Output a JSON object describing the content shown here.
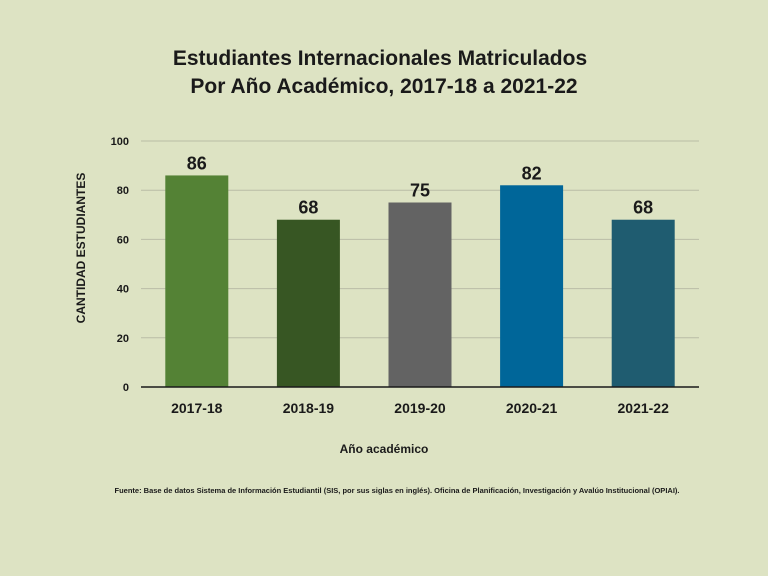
{
  "chart_data": {
    "type": "bar",
    "title_lines": [
      "Estudiantes Internacionales Matriculados",
      "Por Año Académico, 2017-18 a 2021-22"
    ],
    "categories": [
      "2017-18",
      "2018-19",
      "2019-20",
      "2020-21",
      "2021-22"
    ],
    "values": [
      86,
      68,
      75,
      82,
      68
    ],
    "bar_colors": [
      "#548235",
      "#375623",
      "#636363",
      "#006699",
      "#1f5c70"
    ],
    "xlabel": "Año académico",
    "ylabel": "CANTIDAD ESTUDIANTES",
    "ylim": [
      0,
      100
    ],
    "yticks": [
      0,
      20,
      40,
      60,
      80,
      100
    ],
    "grid": true,
    "legend": "none",
    "data_labels": true
  },
  "footnote": "Fuente: Base de datos  Sistema de Información Estudiantil (SIS, por sus siglas en inglés). Oficina de Planificación, Investigación y Avalúo Institucional (OPIAI).",
  "colors": {
    "background": "#dde3c3",
    "gridline": "#b9bca6",
    "axis": "#1a1a1a"
  }
}
